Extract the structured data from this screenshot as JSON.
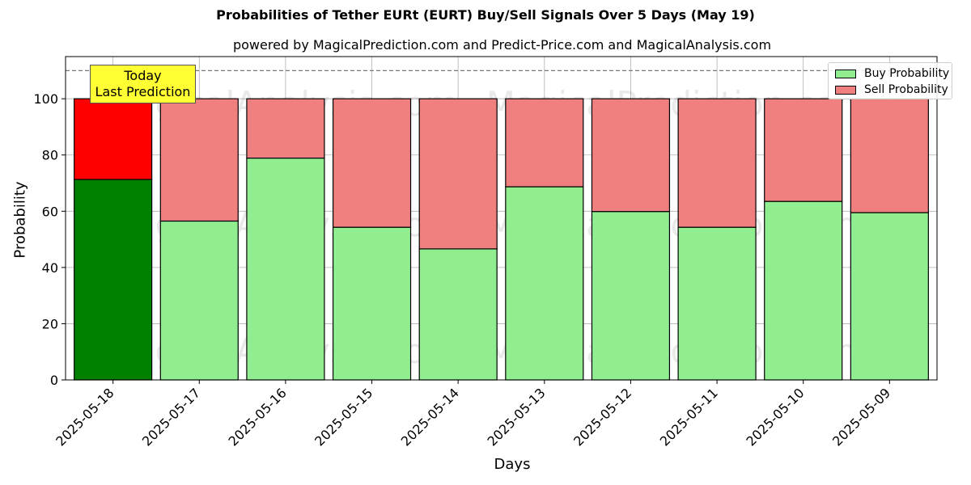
{
  "chart_data": {
    "type": "bar",
    "stacked": true,
    "title": "Probabilities of Tether EURt (EURT) Buy/Sell Signals Over 5 Days (May 19)",
    "subtitle": "powered by MagicalPrediction.com and Predict-Price.com and MagicalAnalysis.com",
    "xlabel": "Days",
    "ylabel": "Probability",
    "ylim": [
      0,
      115
    ],
    "yticks": [
      0,
      20,
      40,
      60,
      80,
      100
    ],
    "reference_line": 110,
    "grid": true,
    "legend_position": "top-right",
    "categories": [
      "2025-05-18",
      "2025-05-17",
      "2025-05-16",
      "2025-05-15",
      "2025-05-14",
      "2025-05-13",
      "2025-05-12",
      "2025-05-11",
      "2025-05-10",
      "2025-05-09"
    ],
    "series": [
      {
        "name": "Buy Probability",
        "values": [
          71.3,
          56.5,
          78.9,
          54.3,
          46.6,
          68.7,
          59.9,
          54.3,
          63.5,
          59.5
        ]
      },
      {
        "name": "Sell Probability",
        "values": [
          28.7,
          43.5,
          21.1,
          45.7,
          53.4,
          31.3,
          40.1,
          45.7,
          36.5,
          40.5
        ]
      }
    ],
    "colors": {
      "buy": "#90ee90",
      "sell": "#f08080",
      "buy_highlight": "#008000",
      "sell_highlight": "#ff0000"
    },
    "annotation": {
      "line1": "Today",
      "line2": "Last Prediction"
    },
    "watermarks": [
      "MagicalAnalysis.com",
      "MagicalPrediction.com"
    ]
  }
}
